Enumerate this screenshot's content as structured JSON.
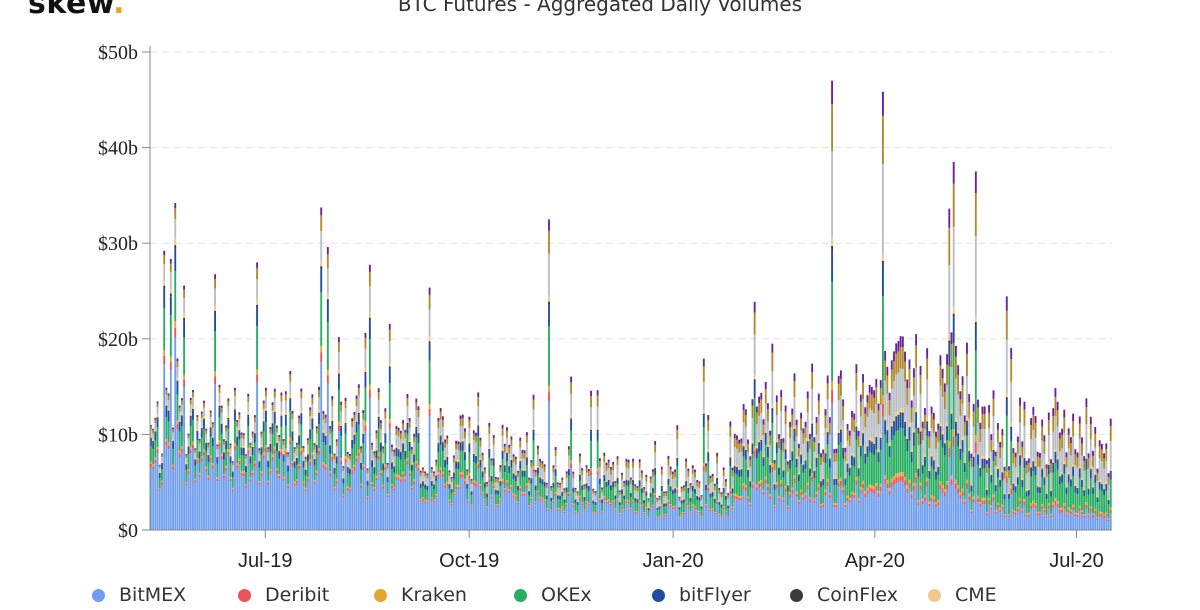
{
  "brand": {
    "name": "skew",
    "dot": "."
  },
  "chart_data": {
    "type": "bar",
    "stacked": true,
    "title": "BTC Futures - Aggregated Daily Volumes",
    "xlabel": "",
    "ylabel": "",
    "x_range": [
      "2019-05-10",
      "2020-07-17"
    ],
    "ylim": [
      0,
      50
    ],
    "y_unit": "billion USD",
    "y_ticks": [
      "$0",
      "$10b",
      "$20b",
      "$30b",
      "$40b",
      "$50b"
    ],
    "y_tick_values": [
      0,
      10,
      20,
      30,
      40,
      50
    ],
    "x_ticks": [
      "Jul-19",
      "Oct-19",
      "Jan-20",
      "Apr-20",
      "Jul-20"
    ],
    "x_tick_dates": [
      "2019-07-01",
      "2019-10-01",
      "2020-01-01",
      "2020-04-01",
      "2020-07-01"
    ],
    "grid": true,
    "legend_position": "bottom",
    "series": [
      {
        "name": "BitMEX",
        "color": "#6f9ef0"
      },
      {
        "name": "Deribit",
        "color": "#e9545a"
      },
      {
        "name": "Kraken",
        "color": "#e4a62e"
      },
      {
        "name": "OKEx",
        "color": "#27ae60"
      },
      {
        "name": "bitFlyer",
        "color": "#1f4e9c"
      },
      {
        "name": "CoinFlex",
        "color": "#3a3a3a"
      },
      {
        "name": "CME",
        "color": "#efc98a"
      }
    ],
    "unlabeled_series_colors": [
      "#b8bfc4",
      "#b08a2b",
      "#6a1ea0"
    ],
    "notable_totals": [
      {
        "date": "2019-06-27",
        "total": 28.0
      },
      {
        "date": "2019-11-06",
        "total": 32.5
      },
      {
        "date": "2020-03-13",
        "total": 47.0
      },
      {
        "date": "2020-05-07",
        "total": 38.5
      },
      {
        "date": "2020-05-17",
        "total": 37.5
      }
    ]
  }
}
